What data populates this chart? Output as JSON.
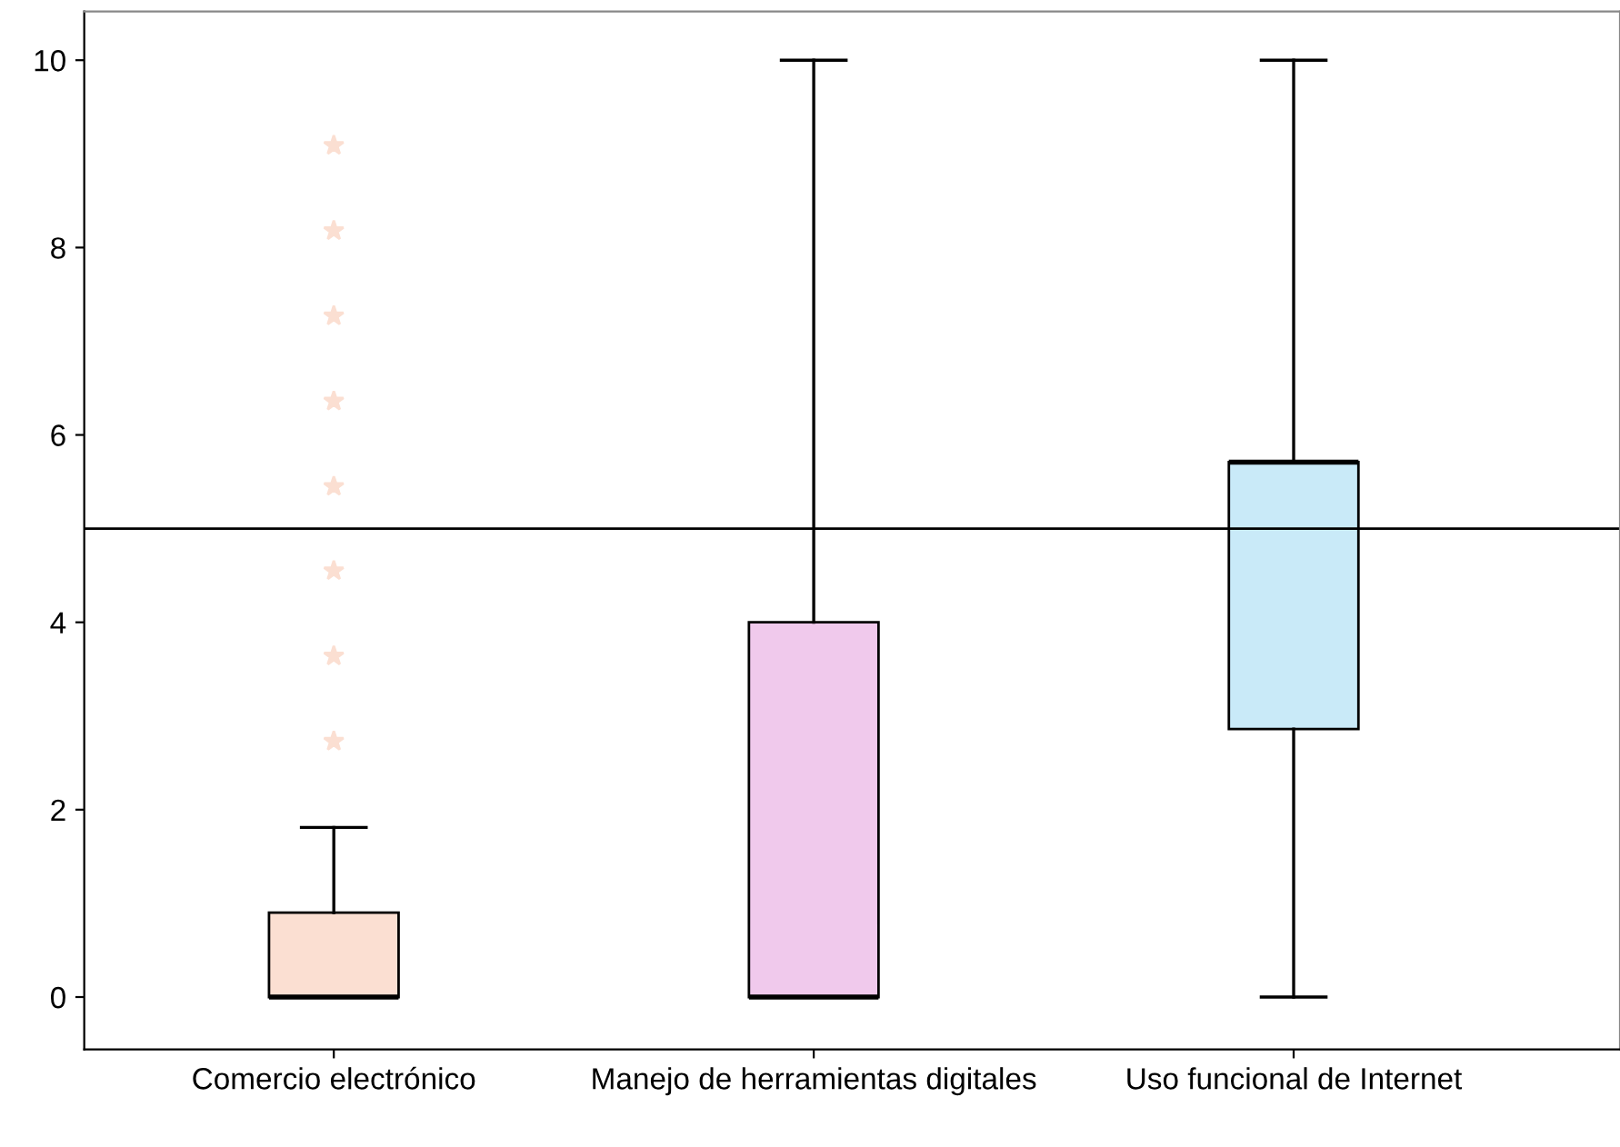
{
  "chart_data": {
    "type": "box",
    "categories": [
      "Comercio electrónico",
      "Manejo de herramientas digitales",
      "Uso funcional de Internet"
    ],
    "boxes": [
      {
        "low": 0,
        "q1": 0,
        "median": 0,
        "q3": 0.9,
        "high": 1.81,
        "outliers": [
          2.73,
          3.64,
          4.55,
          5.45,
          6.36,
          7.27,
          8.18,
          9.09
        ]
      },
      {
        "low": 0,
        "q1": 0,
        "median": 0,
        "q3": 4,
        "high": 10
      },
      {
        "low": 0,
        "q1": 2.86,
        "median": 5.71,
        "q3": 5.71,
        "high": 10
      }
    ],
    "colors": [
      "#fbdfd2",
      "#f0c9ec",
      "#c9eaf8"
    ],
    "ylim": [
      -0.56,
      10.52
    ],
    "yticks": [
      0,
      2,
      4,
      6,
      8,
      10
    ],
    "ref_lines": [
      {
        "axis": "y",
        "value": 5,
        "color": "#000000"
      }
    ],
    "marker": "star",
    "grid": false,
    "legend": false
  }
}
